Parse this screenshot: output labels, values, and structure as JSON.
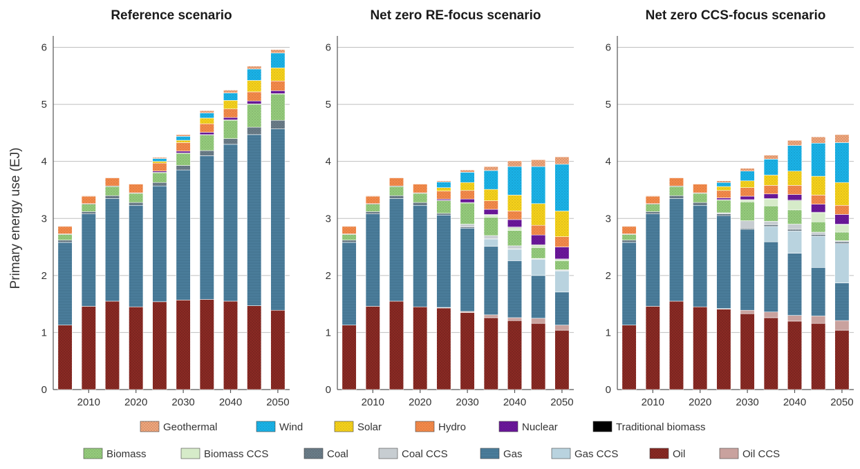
{
  "chart_data": {
    "type": "bar",
    "stacked": true,
    "ylabel": "Primary energy use (EJ)",
    "ylim": [
      0,
      6.2
    ],
    "yticks": [
      "0",
      "1",
      "2",
      "3",
      "4",
      "5",
      "6"
    ],
    "x": [
      2005,
      2010,
      2015,
      2020,
      2025,
      2030,
      2035,
      2040,
      2045,
      2050
    ],
    "xticks": [
      "2010",
      "2020",
      "2030",
      "2040",
      "2050"
    ],
    "grid": true,
    "legend_position": "bottom",
    "components": [
      {
        "key": "oil",
        "name": "Oil",
        "color": "#8b2a24",
        "pattern": "crosshatch"
      },
      {
        "key": "oil_ccs",
        "name": "Oil CCS",
        "color": "#c9a29e",
        "pattern": "none"
      },
      {
        "key": "gas",
        "name": "Gas",
        "color": "#4f86a6",
        "pattern": "lines"
      },
      {
        "key": "gas_ccs",
        "name": "Gas CCS",
        "color": "#b9d3df",
        "pattern": "none"
      },
      {
        "key": "coal",
        "name": "Coal",
        "color": "#6a7c88",
        "pattern": "dots"
      },
      {
        "key": "coal_ccs",
        "name": "Coal CCS",
        "color": "#c7cdd1",
        "pattern": "none"
      },
      {
        "key": "biomass",
        "name": "Biomass",
        "color": "#95cc7c",
        "pattern": "dots"
      },
      {
        "key": "biomass_ccs",
        "name": "Biomass CCS",
        "color": "#d6ebc9",
        "pattern": "none"
      },
      {
        "key": "traditional_biomass",
        "name": "Traditional biomass",
        "color": "#000000",
        "pattern": "none"
      },
      {
        "key": "nuclear",
        "name": "Nuclear",
        "color": "#6b179b",
        "pattern": "dots"
      },
      {
        "key": "hydro",
        "name": "Hydro",
        "color": "#f58a4a",
        "pattern": "dots"
      },
      {
        "key": "solar",
        "name": "Solar",
        "color": "#f6d21c",
        "pattern": "dots"
      },
      {
        "key": "wind",
        "name": "Wind",
        "color": "#1ab3e8",
        "pattern": "dots"
      },
      {
        "key": "geothermal",
        "name": "Geothermal",
        "color": "#f3a87d",
        "pattern": "crosshatch"
      }
    ],
    "panels": [
      {
        "title": "Reference scenario",
        "series": {
          "oil": [
            1.13,
            1.46,
            1.55,
            1.45,
            1.54,
            1.57,
            1.58,
            1.55,
            1.47,
            1.39
          ],
          "oil_ccs": [
            0,
            0,
            0,
            0,
            0,
            0,
            0,
            0,
            0,
            0
          ],
          "gas": [
            1.45,
            1.62,
            1.8,
            1.78,
            2.03,
            2.28,
            2.52,
            2.75,
            3.0,
            3.18
          ],
          "gas_ccs": [
            0,
            0,
            0,
            0,
            0,
            0,
            0,
            0,
            0,
            0
          ],
          "coal": [
            0.04,
            0.04,
            0.05,
            0.05,
            0.06,
            0.08,
            0.09,
            0.1,
            0.13,
            0.15
          ],
          "coal_ccs": [
            0,
            0,
            0,
            0,
            0,
            0,
            0,
            0,
            0,
            0
          ],
          "biomass": [
            0.1,
            0.13,
            0.16,
            0.16,
            0.17,
            0.21,
            0.27,
            0.32,
            0.4,
            0.46
          ],
          "biomass_ccs": [
            0,
            0,
            0,
            0,
            0,
            0,
            0,
            0,
            0,
            0
          ],
          "traditional_biomass": [
            0.01,
            0.01,
            0.01,
            0.01,
            0.01,
            0.01,
            0.01,
            0.01,
            0.01,
            0.01
          ],
          "nuclear": [
            0,
            0,
            0,
            0,
            0.02,
            0.03,
            0.04,
            0.04,
            0.05,
            0.05
          ],
          "hydro": [
            0.13,
            0.13,
            0.14,
            0.15,
            0.14,
            0.15,
            0.15,
            0.15,
            0.16,
            0.17
          ],
          "solar": [
            0,
            0,
            0,
            0,
            0.03,
            0.04,
            0.1,
            0.15,
            0.2,
            0.23
          ],
          "wind": [
            0,
            0,
            0,
            0,
            0.05,
            0.07,
            0.09,
            0.13,
            0.2,
            0.26
          ],
          "geothermal": [
            0.01,
            0.01,
            0.01,
            0.01,
            0.02,
            0.03,
            0.04,
            0.05,
            0.05,
            0.06
          ]
        }
      },
      {
        "title": "Net zero RE-focus scenario",
        "series": {
          "oil": [
            1.13,
            1.46,
            1.55,
            1.45,
            1.43,
            1.35,
            1.26,
            1.21,
            1.16,
            1.04
          ],
          "oil_ccs": [
            0,
            0,
            0,
            0,
            0.01,
            0.02,
            0.05,
            0.05,
            0.09,
            0.09
          ],
          "gas": [
            1.45,
            1.62,
            1.8,
            1.78,
            1.62,
            1.46,
            1.2,
            1.0,
            0.75,
            0.58
          ],
          "gas_ccs": [
            0,
            0,
            0,
            0,
            0,
            0,
            0.13,
            0.2,
            0.28,
            0.37
          ],
          "coal": [
            0.04,
            0.04,
            0.05,
            0.05,
            0.03,
            0.02,
            0.01,
            0.01,
            0.01,
            0.01
          ],
          "coal_ccs": [
            0,
            0,
            0,
            0,
            0,
            0.05,
            0.05,
            0.05,
            0.01,
            0.01
          ],
          "biomass": [
            0.1,
            0.13,
            0.16,
            0.16,
            0.22,
            0.37,
            0.32,
            0.27,
            0.19,
            0.16
          ],
          "biomass_ccs": [
            0,
            0,
            0,
            0,
            0,
            0,
            0.04,
            0.05,
            0.04,
            0.02
          ],
          "traditional_biomass": [
            0.01,
            0.01,
            0.01,
            0.01,
            0.01,
            0.01,
            0.01,
            0.01,
            0.01,
            0.01
          ],
          "nuclear": [
            0,
            0,
            0,
            0,
            0.02,
            0.06,
            0.09,
            0.13,
            0.17,
            0.21
          ],
          "hydro": [
            0.13,
            0.13,
            0.14,
            0.15,
            0.14,
            0.15,
            0.15,
            0.15,
            0.17,
            0.18
          ],
          "solar": [
            0,
            0,
            0,
            0,
            0.06,
            0.14,
            0.2,
            0.28,
            0.38,
            0.45
          ],
          "wind": [
            0,
            0,
            0,
            0,
            0.1,
            0.18,
            0.33,
            0.5,
            0.65,
            0.82
          ],
          "geothermal": [
            0.01,
            0.01,
            0.01,
            0.01,
            0.02,
            0.04,
            0.07,
            0.1,
            0.12,
            0.13
          ]
        }
      },
      {
        "title": "Net zero CCS-focus scenario",
        "series": {
          "oil": [
            1.13,
            1.46,
            1.55,
            1.45,
            1.41,
            1.33,
            1.26,
            1.2,
            1.16,
            1.04
          ],
          "oil_ccs": [
            0,
            0,
            0,
            0,
            0.01,
            0.06,
            0.1,
            0.1,
            0.13,
            0.17
          ],
          "gas": [
            1.45,
            1.62,
            1.8,
            1.78,
            1.63,
            1.42,
            1.23,
            1.09,
            0.85,
            0.66
          ],
          "gas_ccs": [
            0,
            0,
            0,
            0,
            0,
            0,
            0.27,
            0.39,
            0.55,
            0.69
          ],
          "coal": [
            0.04,
            0.04,
            0.05,
            0.05,
            0.03,
            0.02,
            0.03,
            0.03,
            0.03,
            0.03
          ],
          "coal_ccs": [
            0,
            0,
            0,
            0,
            0.02,
            0.13,
            0.06,
            0.09,
            0.04,
            0.02
          ],
          "biomass": [
            0.1,
            0.13,
            0.16,
            0.16,
            0.22,
            0.33,
            0.27,
            0.25,
            0.18,
            0.15
          ],
          "biomass_ccs": [
            0,
            0,
            0,
            0,
            0,
            0.03,
            0.12,
            0.16,
            0.16,
            0.13
          ],
          "traditional_biomass": [
            0.01,
            0.01,
            0.01,
            0.01,
            0.01,
            0.01,
            0.01,
            0.01,
            0.01,
            0.01
          ],
          "nuclear": [
            0,
            0,
            0,
            0,
            0.03,
            0.06,
            0.08,
            0.1,
            0.14,
            0.17
          ],
          "hydro": [
            0.13,
            0.13,
            0.14,
            0.15,
            0.13,
            0.15,
            0.15,
            0.16,
            0.16,
            0.16
          ],
          "solar": [
            0,
            0,
            0,
            0,
            0.07,
            0.12,
            0.18,
            0.25,
            0.33,
            0.4
          ],
          "wind": [
            0,
            0,
            0,
            0,
            0.07,
            0.17,
            0.28,
            0.45,
            0.58,
            0.7
          ],
          "geothermal": [
            0.01,
            0.01,
            0.01,
            0.01,
            0.03,
            0.05,
            0.07,
            0.09,
            0.11,
            0.14
          ]
        }
      }
    ],
    "legend_rows": [
      [
        "geothermal",
        "wind",
        "solar",
        "hydro",
        "nuclear",
        "traditional_biomass"
      ],
      [
        "biomass",
        "biomass_ccs",
        "coal",
        "coal_ccs",
        "gas",
        "gas_ccs",
        "oil",
        "oil_ccs"
      ]
    ]
  }
}
